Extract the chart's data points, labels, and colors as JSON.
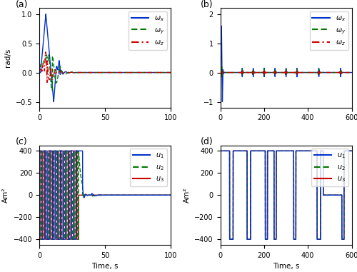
{
  "panel_a": {
    "label": "(a)",
    "ylabel": "rad/s",
    "xlim": [
      0,
      100
    ],
    "ylim": [
      -0.6,
      1.1
    ],
    "yticks": [
      -0.5,
      0,
      0.5,
      1.0
    ],
    "xticks": [
      0,
      50,
      100
    ]
  },
  "panel_b": {
    "label": "(b)",
    "xlim": [
      0,
      600
    ],
    "ylim": [
      -1.2,
      2.2
    ],
    "yticks": [
      -1,
      0,
      1,
      2
    ],
    "xticks": [
      0,
      200,
      400,
      600
    ]
  },
  "panel_c": {
    "label": "(c)",
    "ylabel": "Am²",
    "xlabel": "Time, s",
    "xlim": [
      0,
      100
    ],
    "ylim": [
      -450,
      450
    ],
    "yticks": [
      -400,
      -200,
      0,
      200,
      400
    ],
    "xticks": [
      0,
      50,
      100
    ]
  },
  "panel_d": {
    "label": "(d)",
    "ylabel": "Am²",
    "xlabel": "Time, s",
    "xlim": [
      0,
      600
    ],
    "ylim": [
      -450,
      450
    ],
    "yticks": [
      -400,
      -200,
      0,
      200,
      400
    ],
    "xticks": [
      0,
      200,
      400,
      600
    ]
  },
  "colors": {
    "blue": "#0033CC",
    "green": "#007700",
    "red": "#CC0000"
  }
}
